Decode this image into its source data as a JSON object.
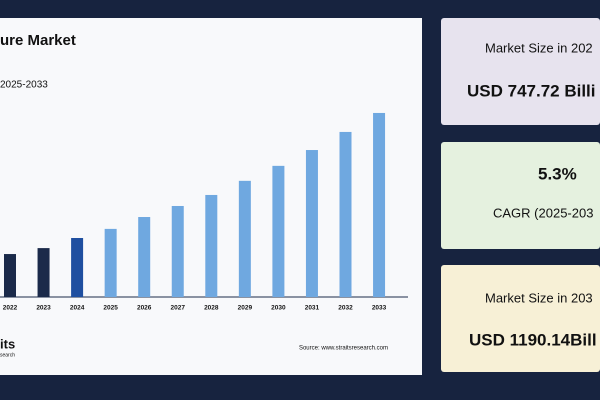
{
  "chart_data": {
    "type": "bar",
    "title": "ure Market",
    "subtitle": "2025-2033",
    "categories": [
      "2022",
      "2023",
      "2024",
      "2025",
      "2026",
      "2027",
      "2028",
      "2029",
      "2030",
      "2031",
      "2032",
      "2033"
    ],
    "values": [
      691,
      712,
      747.72,
      780,
      822,
      861,
      900,
      950,
      1003,
      1059,
      1123,
      1190.14
    ],
    "colors": [
      "#1b2a4a",
      "#1b2a4a",
      "#1f4fa0",
      "#6fa8e0",
      "#6fa8e0",
      "#6fa8e0",
      "#6fa8e0",
      "#6fa8e0",
      "#6fa8e0",
      "#6fa8e0",
      "#6fa8e0",
      "#6fa8e0"
    ],
    "ylim": [
      539,
      1236
    ],
    "source": "Source: www.straitsresearch.com"
  },
  "logo": {
    "text": "its",
    "subtext": "search"
  },
  "cards": [
    {
      "label": "Market Size in 202",
      "value": "USD 747.72 Billi"
    },
    {
      "value": "5.3%",
      "label": "CAGR (2025-203"
    },
    {
      "label": "Market Size in 203",
      "value": "USD 1190.14Bill"
    }
  ]
}
